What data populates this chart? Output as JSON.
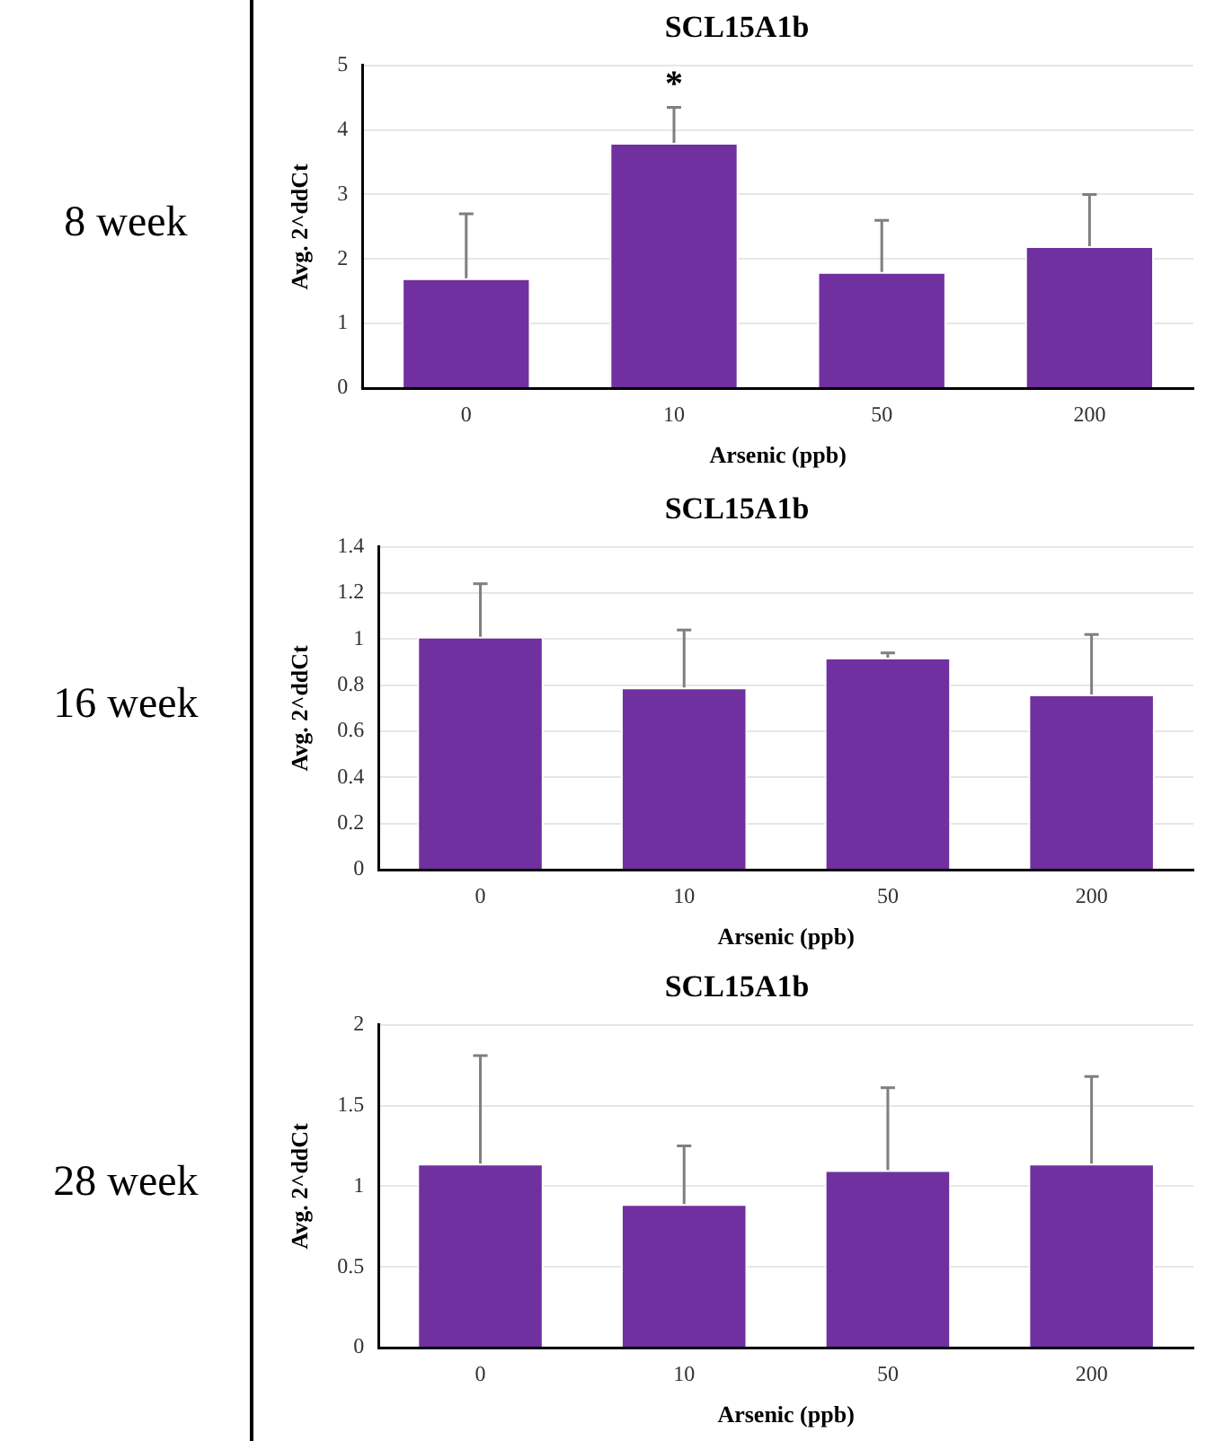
{
  "chart_data": [
    {
      "type": "bar",
      "title": "SCL15A1b",
      "xlabel": "Arsenic (ppb)",
      "ylabel": "Avg. 2^ddCt",
      "categories": [
        "0",
        "10",
        "50",
        "200"
      ],
      "series": [
        {
          "color": "#7030a0",
          "values": [
            1.7,
            3.8,
            1.8,
            2.2
          ],
          "errors": [
            [
              1.7,
              2.7
            ],
            [
              3.8,
              4.35
            ],
            [
              1.8,
              2.6
            ],
            [
              2.2,
              3.0
            ]
          ]
        }
      ],
      "ylim": [
        0,
        5
      ],
      "yticks": [
        0,
        1,
        2,
        3,
        4,
        5
      ],
      "grid": "y",
      "legend": false,
      "annotations": [
        "8 week",
        {
          "text": "*",
          "x": "10",
          "y": 4.35
        }
      ]
    },
    {
      "type": "bar",
      "title": "SCL15A1b",
      "xlabel": "Arsenic (ppb)",
      "ylabel": "Avg. 2^ddCt",
      "categories": [
        "0",
        "10",
        "50",
        "200"
      ],
      "series": [
        {
          "color": "#7030a0",
          "values": [
            1.01,
            0.79,
            0.92,
            0.76
          ],
          "errors": [
            [
              1.01,
              1.24
            ],
            [
              0.79,
              1.04
            ],
            [
              0.92,
              0.94
            ],
            [
              0.76,
              1.02
            ]
          ]
        }
      ],
      "ylim": [
        0,
        1.4
      ],
      "yticks": [
        0,
        0.2,
        0.4,
        0.6,
        0.8,
        1,
        1.2,
        1.4
      ],
      "grid": "y",
      "legend": false,
      "annotations": [
        "16 week"
      ]
    },
    {
      "type": "bar",
      "title": "SCL15A1b",
      "xlabel": "Arsenic (ppb)",
      "ylabel": "Avg. 2^ddCt",
      "categories": [
        "0",
        "10",
        "50",
        "200"
      ],
      "series": [
        {
          "color": "#7030a0",
          "values": [
            1.14,
            0.89,
            1.1,
            1.14
          ],
          "errors": [
            [
              1.14,
              1.81
            ],
            [
              0.89,
              1.25
            ],
            [
              1.1,
              1.61
            ],
            [
              1.14,
              1.68
            ]
          ]
        }
      ],
      "ylim": [
        0,
        2
      ],
      "yticks": [
        0,
        0.5,
        1,
        1.5,
        2
      ],
      "grid": "y",
      "legend": false,
      "annotations": [
        "28 week"
      ]
    }
  ]
}
